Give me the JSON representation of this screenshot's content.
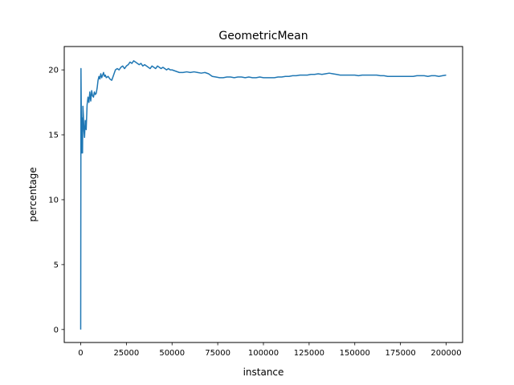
{
  "chart_data": {
    "type": "line",
    "title": "GeometricMean",
    "xlabel": "instance",
    "ylabel": "percentage",
    "xlim": [
      -9000,
      209000
    ],
    "ylim": [
      -1.0,
      21.8
    ],
    "xticks": [
      0,
      25000,
      50000,
      75000,
      100000,
      125000,
      150000,
      175000,
      200000
    ],
    "yticks": [
      0,
      5,
      10,
      15,
      20
    ],
    "grid": false,
    "color": "#1f77b4",
    "series": [
      {
        "x": [
          0,
          150,
          300,
          450,
          600,
          800,
          1000,
          1200,
          1500,
          1800,
          2100,
          2500,
          3000,
          3500,
          4000,
          4500,
          5000,
          5500,
          6000,
          6500,
          7000,
          7500,
          8000,
          8500,
          9000,
          9500,
          10000,
          10500,
          11000,
          11500,
          12000,
          12500,
          13000,
          13500,
          14000,
          15000,
          16000,
          17000,
          18000,
          19000,
          20000,
          21000,
          22000,
          23000,
          24000,
          25000,
          26000,
          27000,
          28000,
          29000,
          30000,
          31000,
          32000,
          33000,
          34000,
          35000,
          36000,
          37000,
          38000,
          39000,
          40000,
          41000,
          42000,
          43000,
          44000,
          45000,
          46000,
          47000,
          48000,
          49000,
          50000,
          52000,
          54000,
          56000,
          58000,
          60000,
          62000,
          64000,
          66000,
          68000,
          70000,
          72000,
          74000,
          76000,
          78000,
          80000,
          82000,
          84000,
          86000,
          88000,
          90000,
          92000,
          94000,
          96000,
          98000,
          100000,
          102000,
          104000,
          106000,
          108000,
          110000,
          112000,
          114000,
          116000,
          118000,
          120000,
          122000,
          124000,
          126000,
          128000,
          130000,
          132000,
          134000,
          136000,
          138000,
          140000,
          142000,
          144000,
          146000,
          148000,
          150000,
          152000,
          154000,
          156000,
          158000,
          160000,
          162000,
          164000,
          166000,
          168000,
          170000,
          172000,
          174000,
          176000,
          178000,
          180000,
          182000,
          184000,
          186000,
          188000,
          190000,
          192000,
          194000,
          196000,
          198000,
          200000
        ],
        "y": [
          0.0,
          20.1,
          17.4,
          13.6,
          16.3,
          14.9,
          13.6,
          17.2,
          16.4,
          15.3,
          14.8,
          16.1,
          15.4,
          17.3,
          17.9,
          17.5,
          18.3,
          17.6,
          18.4,
          18.0,
          17.9,
          18.3,
          18.1,
          18.2,
          18.6,
          19.2,
          19.5,
          19.3,
          19.7,
          19.4,
          19.6,
          19.8,
          19.5,
          19.6,
          19.4,
          19.5,
          19.3,
          19.2,
          19.6,
          20.0,
          20.1,
          20.0,
          20.2,
          20.3,
          20.1,
          20.3,
          20.4,
          20.6,
          20.5,
          20.7,
          20.6,
          20.5,
          20.4,
          20.5,
          20.3,
          20.4,
          20.3,
          20.2,
          20.1,
          20.3,
          20.2,
          20.1,
          20.3,
          20.2,
          20.1,
          20.2,
          20.1,
          20.0,
          20.1,
          20.0,
          20.0,
          19.9,
          19.8,
          19.8,
          19.85,
          19.8,
          19.85,
          19.8,
          19.75,
          19.8,
          19.7,
          19.5,
          19.45,
          19.4,
          19.4,
          19.45,
          19.45,
          19.4,
          19.45,
          19.45,
          19.4,
          19.45,
          19.4,
          19.4,
          19.45,
          19.4,
          19.4,
          19.4,
          19.4,
          19.45,
          19.45,
          19.5,
          19.5,
          19.55,
          19.55,
          19.6,
          19.6,
          19.6,
          19.65,
          19.65,
          19.7,
          19.65,
          19.7,
          19.75,
          19.7,
          19.65,
          19.6,
          19.6,
          19.6,
          19.6,
          19.6,
          19.55,
          19.6,
          19.6,
          19.6,
          19.6,
          19.6,
          19.55,
          19.55,
          19.5,
          19.5,
          19.5,
          19.5,
          19.5,
          19.5,
          19.5,
          19.5,
          19.55,
          19.55,
          19.55,
          19.5,
          19.55,
          19.55,
          19.5,
          19.55,
          19.6
        ]
      }
    ]
  }
}
